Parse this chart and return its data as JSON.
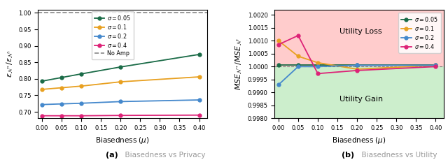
{
  "mu_values": [
    0.0,
    0.05,
    0.1,
    0.2,
    0.4
  ],
  "privacy_data": {
    "sigma_005": [
      0.793,
      0.804,
      0.815,
      0.836,
      0.874
    ],
    "sigma_01": [
      0.768,
      0.773,
      0.778,
      0.791,
      0.806
    ],
    "sigma_02": [
      0.722,
      0.724,
      0.726,
      0.731,
      0.736
    ],
    "sigma_04": [
      0.688,
      0.688,
      0.688,
      0.689,
      0.69
    ]
  },
  "utility_data": {
    "sigma_005": [
      1.00005,
      1.00005,
      1.00005,
      1.00005,
      1.00005
    ],
    "sigma_01": [
      1.001,
      1.0004,
      1.00015,
      0.9999,
      1.00005
    ],
    "sigma_02": [
      0.9993,
      1.0,
      1.0,
      1.00005,
      1.00005
    ],
    "sigma_04": [
      1.00085,
      1.0012,
      0.99973,
      0.99985,
      1.0
    ]
  },
  "colors": {
    "sigma_005": "#1a6b47",
    "sigma_01": "#e8a020",
    "sigma_02": "#4488cc",
    "sigma_04": "#dd2277"
  },
  "no_amp_color": "#888888",
  "privacy_ylim": [
    0.68,
    1.01
  ],
  "utility_ylim": [
    0.998,
    1.0022
  ],
  "xlabel": "Biasedness ($\\mu$)",
  "privacy_ylabel": "$\\varepsilon_{\\mathcal{N}^*}/\\varepsilon_{\\mathcal{N}^\\prime}$",
  "utility_ylabel": "$MSE_{\\mathcal{N}^*}/MSE_{\\mathcal{N}^\\prime}$",
  "privacy_yticks": [
    0.7,
    0.75,
    0.8,
    0.85,
    0.9,
    0.95,
    1.0
  ],
  "utility_yticks": [
    0.998,
    0.9985,
    0.999,
    0.9995,
    1.0,
    1.0005,
    1.001,
    1.0015,
    1.002
  ],
  "xticks": [
    0.0,
    0.05,
    0.1,
    0.15,
    0.2,
    0.25,
    0.3,
    0.35,
    0.4
  ],
  "loss_color": "#ffcccc",
  "gain_color": "#cceecc",
  "utility_loss_text": "Utility Loss",
  "utility_gain_text": "Utility Gain",
  "caption_a_bold": "(a)",
  "caption_a_text": "  Biasedness vs Privacy",
  "caption_b_bold": "(b)",
  "caption_b_text": "  Biasedness vs Utility"
}
